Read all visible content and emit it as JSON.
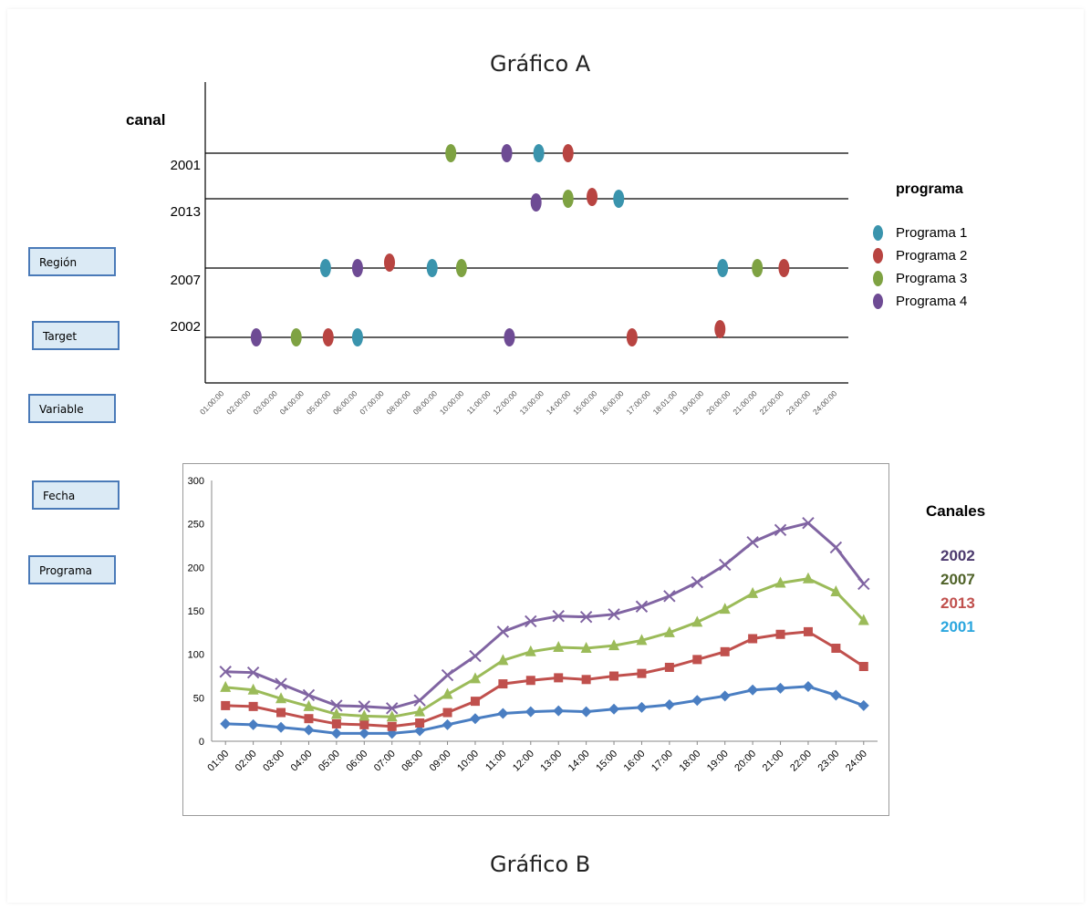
{
  "chartA_title": "Gráfico A",
  "chartB_title": "Gráfico B",
  "side_buttons": [
    "Región",
    "Target",
    "Variable",
    "Fecha",
    "Programa"
  ],
  "chart_data": [
    {
      "type": "scatter",
      "title": "Gráfico A",
      "ylabel": "canal",
      "y_categories": [
        "2001",
        "2013",
        "2007",
        "2002"
      ],
      "x_ticks": [
        "01:00:00",
        "02:00:00",
        "03:00:00",
        "04:00:00",
        "05:00:00",
        "06:00:00",
        "07:00:00",
        "08:00:00",
        "09:00:00",
        "10:00:00",
        "11:00:00",
        "12:00:00",
        "13:00:00",
        "14:00:00",
        "15:00:00",
        "16:00:00",
        "17:00:00",
        "18:01:00",
        "19:00:00",
        "20:00:00",
        "21:00:00",
        "22:00:00",
        "23:00:00",
        "24:00:00"
      ],
      "legend_title": "programa",
      "legend_placement": "right",
      "series": [
        {
          "name": "Programa 1",
          "color": "#3a94ad",
          "points": [
            {
              "canal": "2001",
              "hour": 13.0
            },
            {
              "canal": "2013",
              "hour": 16.0
            },
            {
              "canal": "2007",
              "hour": 5.0
            },
            {
              "canal": "2007",
              "hour": 9.0
            },
            {
              "canal": "2007",
              "hour": 19.9
            },
            {
              "canal": "2002",
              "hour": 6.2
            }
          ]
        },
        {
          "name": "Programa 2",
          "color": "#b84441",
          "points": [
            {
              "canal": "2001",
              "hour": 14.1
            },
            {
              "canal": "2013",
              "hour": 15.0
            },
            {
              "canal": "2007",
              "hour": 7.4
            },
            {
              "canal": "2007",
              "hour": 22.2
            },
            {
              "canal": "2002",
              "hour": 5.1
            },
            {
              "canal": "2002",
              "hour": 16.5
            },
            {
              "canal": "2002",
              "hour": 19.8
            }
          ]
        },
        {
          "name": "Programa 3",
          "color": "#7ea242",
          "points": [
            {
              "canal": "2001",
              "hour": 9.7
            },
            {
              "canal": "2013",
              "hour": 14.1
            },
            {
              "canal": "2007",
              "hour": 10.1
            },
            {
              "canal": "2007",
              "hour": 21.2
            },
            {
              "canal": "2002",
              "hour": 3.9
            }
          ]
        },
        {
          "name": "Programa 4",
          "color": "#6e4b94",
          "points": [
            {
              "canal": "2001",
              "hour": 11.8
            },
            {
              "canal": "2013",
              "hour": 12.9
            },
            {
              "canal": "2007",
              "hour": 6.2
            },
            {
              "canal": "2002",
              "hour": 2.4
            },
            {
              "canal": "2002",
              "hour": 11.9
            }
          ]
        }
      ]
    },
    {
      "type": "line",
      "title": "Gráfico B",
      "categories": [
        "01:00",
        "02:00",
        "03:00",
        "04:00",
        "05:00",
        "06:00",
        "07:00",
        "08:00",
        "09:00",
        "10:00",
        "11:00",
        "12:00",
        "13:00",
        "14:00",
        "15:00",
        "16:00",
        "17:00",
        "18:00",
        "19:00",
        "20:00",
        "21:00",
        "22:00",
        "23:00",
        "24:00"
      ],
      "ylim": [
        0,
        300
      ],
      "y_ticks": [
        0,
        50,
        100,
        150,
        200,
        250,
        300
      ],
      "legend_title": "Canales",
      "legend_placement": "right",
      "series": [
        {
          "name": "2001",
          "color": "#4a7ec2",
          "marker": "diamond",
          "values": [
            20,
            19,
            16,
            13,
            9,
            9,
            9,
            12,
            19,
            26,
            32,
            34,
            35,
            34,
            37,
            39,
            42,
            47,
            52,
            59,
            61,
            63,
            53,
            41
          ]
        },
        {
          "name": "2013",
          "color": "#c0504d",
          "marker": "square",
          "values": [
            41,
            40,
            33,
            26,
            20,
            19,
            17,
            21,
            33,
            46,
            66,
            70,
            73,
            71,
            75,
            78,
            85,
            94,
            103,
            118,
            123,
            126,
            107,
            86
          ]
        },
        {
          "name": "2007",
          "color": "#9bbb59",
          "marker": "triangle",
          "values": [
            62,
            59,
            49,
            40,
            31,
            29,
            28,
            34,
            54,
            72,
            93,
            103,
            108,
            107,
            110,
            116,
            125,
            137,
            152,
            170,
            182,
            187,
            172,
            139
          ]
        },
        {
          "name": "2002",
          "color": "#8064a2",
          "marker": "x",
          "values": [
            80,
            79,
            66,
            53,
            41,
            40,
            38,
            47,
            76,
            98,
            126,
            138,
            144,
            143,
            146,
            155,
            167,
            183,
            203,
            229,
            243,
            251,
            223,
            181
          ]
        }
      ],
      "legend_colors": {
        "2002": "#4c3a6e",
        "2007": "#4f6228",
        "2013": "#c0504d",
        "2001": "#2ba6de"
      }
    }
  ]
}
